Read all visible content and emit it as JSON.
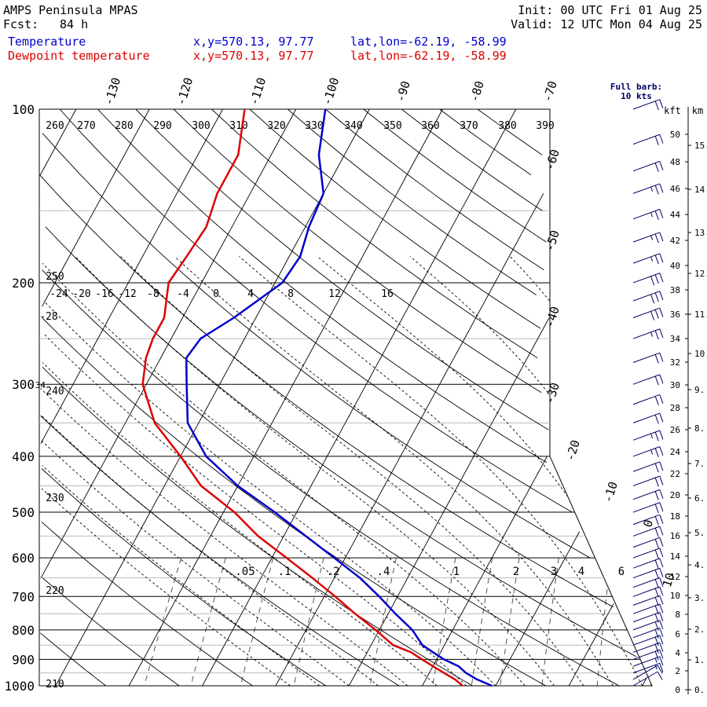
{
  "header": {
    "title": "AMPS Peninsula MPAS",
    "fcst_label": "Fcst:",
    "fcst_value": "84 h",
    "init": "Init: 00 UTC Fri 01 Aug 25",
    "valid": "Valid: 12 UTC Mon 04 Aug 25",
    "temp_label": "Temperature",
    "dew_label": "Dewpoint temperature",
    "xy": "x,y=570.13, 97.77",
    "latlon": "lat,lon=-62.19, -58.99"
  },
  "barb_legend": {
    "line1": "Full barb:",
    "line2": "10 kts"
  },
  "units": {
    "kft": "kft",
    "km": "km"
  },
  "colors": {
    "temperature": "#0000cc",
    "dewpoint": "#dd0000",
    "axes": "#000000",
    "barb": "#000066"
  },
  "chart_data": {
    "type": "line",
    "subtype": "skew-T log-P sounding",
    "y_axis": {
      "label": "Pressure (hPa)",
      "ticks": [
        100,
        200,
        300,
        400,
        500,
        600,
        700,
        800,
        900,
        1000
      ],
      "scale": "log"
    },
    "isotherm_labels": [
      "-130",
      "-120",
      "-110",
      "-100",
      "-90",
      "-80",
      "-70",
      "-60",
      "-50",
      "-40",
      "-30",
      "-20",
      "-10",
      "0",
      "10"
    ],
    "theta_labels": [
      "260",
      "270",
      "280",
      "290",
      "300",
      "310",
      "320",
      "330",
      "340",
      "350",
      "360",
      "370",
      "380",
      "390",
      "250",
      "240",
      "230",
      "220",
      "210"
    ],
    "thetae_labels": [
      "-24",
      "-20",
      "-16",
      "-12",
      "-8",
      "-4",
      "0",
      "4",
      "8",
      "12",
      "16",
      "-28",
      "-34"
    ],
    "mixing_ratio_labels": [
      ".05",
      ".1",
      ".2",
      ".4",
      "1",
      "2",
      "3",
      "4",
      "6"
    ],
    "kft_ticks": [
      "0",
      "2",
      "4",
      "6",
      "8",
      "10",
      "12",
      "14",
      "16",
      "18",
      "20",
      "22",
      "24",
      "26",
      "28",
      "30",
      "32",
      "34",
      "36",
      "38",
      "40",
      "42",
      "44",
      "46",
      "48",
      "50"
    ],
    "km_ticks": [
      "0.",
      "1.",
      "2.",
      "3.",
      "4.",
      "5.",
      "6.",
      "7.",
      "8.",
      "9.",
      "10.",
      "11.",
      "12.",
      "13.",
      "14.",
      "15."
    ],
    "series": [
      {
        "name": "Temperature",
        "pressure": [
          1000,
          975,
          950,
          925,
          900,
          875,
          850,
          800,
          750,
          700,
          650,
          600,
          550,
          500,
          450,
          400,
          350,
          300,
          270,
          250,
          230,
          200,
          180,
          160,
          140,
          120,
          100
        ],
        "values": [
          -0.5,
          -3,
          -5,
          -6.5,
          -9,
          -11,
          -13,
          -15.5,
          -19,
          -22.5,
          -26.5,
          -31.5,
          -37,
          -43,
          -50,
          -56.5,
          -61.5,
          -64.5,
          -66.5,
          -66,
          -63,
          -59,
          -58.5,
          -59.5,
          -60,
          -63.5,
          -66
        ]
      },
      {
        "name": "Dewpoint temperature",
        "pressure": [
          1000,
          975,
          950,
          925,
          900,
          875,
          850,
          800,
          750,
          700,
          650,
          600,
          550,
          500,
          450,
          400,
          350,
          300,
          270,
          250,
          230,
          200,
          180,
          160,
          140,
          120,
          100
        ],
        "values": [
          -4.5,
          -6,
          -8,
          -10,
          -12,
          -14,
          -17,
          -20.5,
          -24.5,
          -28.5,
          -33,
          -38,
          -43.5,
          -48.5,
          -55,
          -60,
          -66,
          -70.5,
          -72,
          -72.5,
          -72.5,
          -74.5,
          -74,
          -73.5,
          -74.5,
          -74.5,
          -77
        ]
      }
    ],
    "wind_barbs": {
      "pressure": [
        1000,
        975,
        950,
        925,
        900,
        875,
        850,
        825,
        800,
        775,
        750,
        725,
        700,
        675,
        650,
        625,
        600,
        575,
        550,
        525,
        500,
        475,
        450,
        425,
        400,
        375,
        350,
        325,
        300,
        275,
        250,
        230,
        215,
        200,
        185,
        170,
        155,
        140,
        128,
        115,
        100
      ],
      "speed_kts": [
        10,
        10,
        15,
        15,
        20,
        20,
        20,
        20,
        20,
        20,
        20,
        20,
        20,
        20,
        20,
        20,
        20,
        20,
        20,
        20,
        20,
        20,
        20,
        20,
        25,
        25,
        20,
        20,
        20,
        20,
        25,
        30,
        30,
        30,
        25,
        25,
        25,
        25,
        20,
        20,
        20
      ],
      "direction_deg": [
        300,
        300,
        290,
        290,
        290,
        290,
        290,
        290,
        290,
        290,
        290,
        290,
        290,
        290,
        290,
        290,
        290,
        290,
        290,
        290,
        290,
        290,
        290,
        290,
        290,
        290,
        290,
        290,
        290,
        290,
        290,
        290,
        290,
        290,
        290,
        290,
        290,
        290,
        290,
        290,
        290
      ]
    }
  }
}
